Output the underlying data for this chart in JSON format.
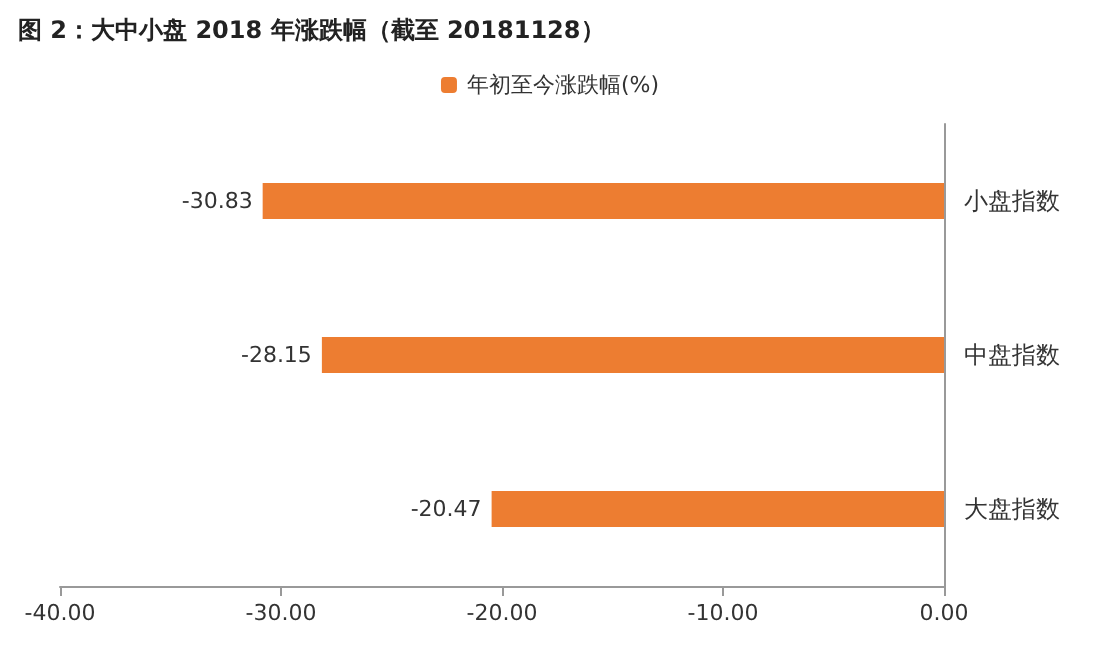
{
  "chart_data": {
    "type": "bar",
    "orientation": "horizontal",
    "title": "图 2：大中小盘 2018 年涨跌幅（截至 20181128）",
    "categories": [
      "小盘指数",
      "中盘指数",
      "大盘指数"
    ],
    "series": [
      {
        "name": "年初至今涨跌幅(%)",
        "color": "#ed7d31",
        "values": [
          -30.83,
          -28.15,
          -20.47
        ]
      }
    ],
    "xlim": [
      -40,
      0
    ],
    "xticks": [
      {
        "value": -40,
        "label": "-40.00"
      },
      {
        "value": -30,
        "label": "-30.00"
      },
      {
        "value": -20,
        "label": "-20.00"
      },
      {
        "value": -10,
        "label": "-10.00"
      },
      {
        "value": 0,
        "label": "0.00"
      }
    ],
    "data_labels": true,
    "legend": "top",
    "grid": false
  }
}
